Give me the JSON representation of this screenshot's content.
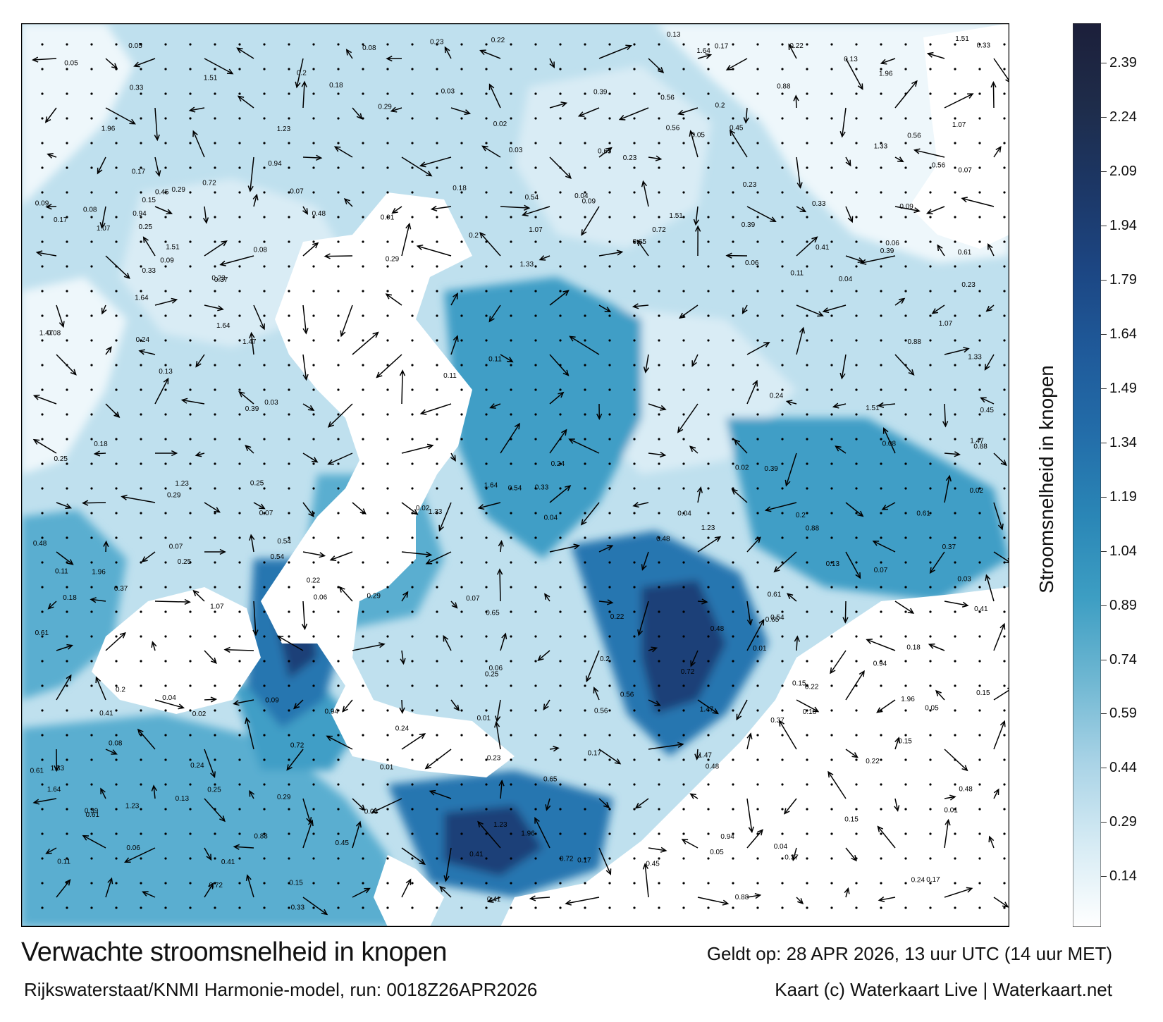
{
  "map": {
    "water_colors": [
      "#ffffff",
      "#d6ebf4",
      "#a9d3e6",
      "#6fb7d2",
      "#3d9ec3",
      "#2a86b6",
      "#236da9",
      "#1f5a9a",
      "#1c4683",
      "#1c3766",
      "#1e2c4a"
    ],
    "land_color": "#ffffff",
    "arrow_color": "#000000",
    "sample_values": [
      "0.22",
      "0.24",
      "0.2",
      "0.39",
      "0.07",
      "0.04",
      "0.08",
      "0.29",
      "0.23",
      "0.17",
      "0.15",
      "0.18",
      "0.25",
      "0.33",
      "0.41",
      "0.56",
      "0.48",
      "0.61",
      "0.72",
      "0.88",
      "1.07",
      "1.23",
      "1.47",
      "1.64",
      "1.96",
      "1.51",
      "1.33",
      "0.94",
      "0.65",
      "0.54",
      "0.45",
      "0.37",
      "0.13",
      "0.11",
      "0.09",
      "0.05",
      "0.02",
      "0.01",
      "0.03",
      "0.06"
    ]
  },
  "legend": {
    "title": "Stroomsnelheid in knopen",
    "ticks": [
      "2.39",
      "2.24",
      "2.09",
      "1.94",
      "1.79",
      "1.64",
      "1.49",
      "1.34",
      "1.19",
      "1.04",
      "0.89",
      "0.74",
      "0.59",
      "0.44",
      "0.29",
      "0.14"
    ],
    "tick_values": [
      2.39,
      2.24,
      2.09,
      1.94,
      1.79,
      1.64,
      1.49,
      1.34,
      1.19,
      1.04,
      0.89,
      0.74,
      0.59,
      0.44,
      0.29,
      0.14
    ],
    "range": [
      0,
      2.5
    ],
    "colors": [
      "#ffffff",
      "#d6ebf4",
      "#a9d3e6",
      "#6fb7d2",
      "#3d9ec3",
      "#2a86b6",
      "#236da9",
      "#1f5a9a",
      "#1c4683",
      "#1c3766",
      "#1e2c4a",
      "#1c1f3a"
    ]
  },
  "footer": {
    "title": "Verwachte stroomsnelheid in knopen",
    "subtitle": "Rijkswaterstaat/KNMI Harmonie-model, run: 0018Z26APR2026",
    "valid": "Geldt op: 28 APR 2026, 13 uur UTC (14 uur MET)",
    "copyright": "Kaart (c) Waterkaart Live | Waterkaart.net"
  }
}
